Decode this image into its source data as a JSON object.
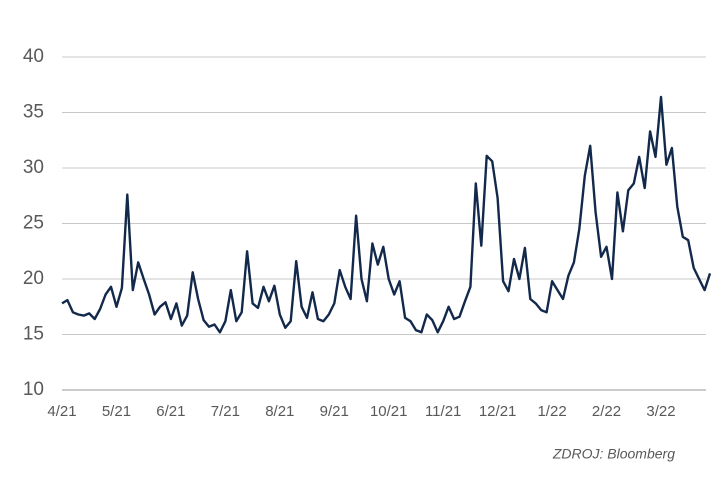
{
  "chart_data": {
    "type": "line",
    "categories": [
      "4/21",
      null,
      null,
      null,
      null,
      null,
      null,
      null,
      null,
      null,
      "5/21",
      null,
      null,
      null,
      null,
      null,
      null,
      null,
      null,
      null,
      "6/21",
      null,
      null,
      null,
      null,
      null,
      null,
      null,
      null,
      null,
      "7/21",
      null,
      null,
      null,
      null,
      null,
      null,
      null,
      null,
      null,
      "8/21",
      null,
      null,
      null,
      null,
      null,
      null,
      null,
      null,
      null,
      "9/21",
      null,
      null,
      null,
      null,
      null,
      null,
      null,
      null,
      null,
      "10/21",
      null,
      null,
      null,
      null,
      null,
      null,
      null,
      null,
      null,
      "11/21",
      null,
      null,
      null,
      null,
      null,
      null,
      null,
      null,
      null,
      "12/21",
      null,
      null,
      null,
      null,
      null,
      null,
      null,
      null,
      null,
      "1/22",
      null,
      null,
      null,
      null,
      null,
      null,
      null,
      null,
      null,
      "2/22",
      null,
      null,
      null,
      null,
      null,
      null,
      null,
      null,
      null,
      "3/22",
      null,
      null,
      null,
      null,
      null,
      null,
      null,
      null,
      null
    ],
    "series": [
      {
        "color": "#13294b",
        "values": [
          17.8,
          18.1,
          17.0,
          16.8,
          16.7,
          16.9,
          16.4,
          17.3,
          18.6,
          19.3,
          17.5,
          19.2,
          27.6,
          19.0,
          21.5,
          20.0,
          18.6,
          16.8,
          17.5,
          17.9,
          16.4,
          17.8,
          15.8,
          16.7,
          20.6,
          18.2,
          16.3,
          15.7,
          15.9,
          15.2,
          16.2,
          19.0,
          16.2,
          17.0,
          22.5,
          17.8,
          17.4,
          19.3,
          18.0,
          19.4,
          16.8,
          15.6,
          16.2,
          21.6,
          17.5,
          16.5,
          18.8,
          16.4,
          16.2,
          16.8,
          17.8,
          20.8,
          19.3,
          18.2,
          25.7,
          20.0,
          18.0,
          23.2,
          21.3,
          22.9,
          20.0,
          18.6,
          19.8,
          16.5,
          16.2,
          15.4,
          15.2,
          16.8,
          16.3,
          15.2,
          16.2,
          17.5,
          16.4,
          16.6,
          18.0,
          19.3,
          28.6,
          23.0,
          31.1,
          30.6,
          27.3,
          19.8,
          18.9,
          21.8,
          20.0,
          22.8,
          18.2,
          17.8,
          17.2,
          17.0,
          19.8,
          19.0,
          18.2,
          20.3,
          21.5,
          24.5,
          29.3,
          32.0,
          26.0,
          22.0,
          22.9,
          20.0,
          27.8,
          24.3,
          28.0,
          28.6,
          31.0,
          28.2,
          33.3,
          31.0,
          36.4,
          30.3,
          31.8,
          26.5,
          23.8,
          23.5,
          21.0,
          20.0,
          19.0,
          20.5
        ]
      }
    ],
    "ylim": [
      10,
      40
    ],
    "yticks": [
      10,
      15,
      20,
      25,
      30,
      35,
      40
    ],
    "grid": true,
    "source": "ZDROJ: Bloomberg"
  }
}
